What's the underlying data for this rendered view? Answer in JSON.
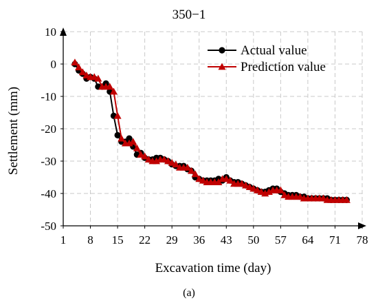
{
  "chart_data": {
    "type": "line",
    "title": "350−1",
    "xlabel": "Excavation time (day)",
    "ylabel": "Settlement (mm)",
    "caption": "(a)",
    "xlim": [
      1,
      78
    ],
    "ylim": [
      -50,
      10
    ],
    "x_ticks": [
      1,
      8,
      15,
      22,
      29,
      36,
      43,
      50,
      57,
      64,
      71,
      78
    ],
    "y_ticks": [
      10,
      0,
      -10,
      -20,
      -30,
      -40,
      -50
    ],
    "grid": true,
    "legend_position": "top-right",
    "series": [
      {
        "name": "Actual value",
        "color": "#000000",
        "marker": "circle",
        "x": [
          4,
          5,
          6,
          7,
          8,
          9,
          10,
          11,
          12,
          13,
          14,
          15,
          16,
          17,
          18,
          19,
          20,
          21,
          22,
          23,
          24,
          25,
          26,
          27,
          28,
          29,
          30,
          31,
          32,
          33,
          34,
          35,
          36,
          37,
          38,
          39,
          40,
          41,
          42,
          43,
          44,
          45,
          46,
          47,
          48,
          49,
          50,
          51,
          52,
          53,
          54,
          55,
          56,
          57,
          58,
          59,
          60,
          61,
          62,
          63,
          64,
          65,
          66,
          67,
          68,
          69,
          70,
          71,
          72,
          73,
          74
        ],
        "y": [
          0,
          -2,
          -3,
          -4.5,
          -4,
          -4.5,
          -7,
          -7,
          -6,
          -8.5,
          -16,
          -22,
          -24,
          -24,
          -23,
          -25.5,
          -28,
          -27.5,
          -29,
          -29.5,
          -29.5,
          -29,
          -29,
          -29.5,
          -30,
          -31,
          -31.5,
          -31.5,
          -31.5,
          -32.5,
          -33,
          -35,
          -35.5,
          -36,
          -36,
          -36,
          -36,
          -35.5,
          -36,
          -35,
          -36,
          -36.5,
          -36.5,
          -37,
          -37.5,
          -38,
          -38.5,
          -39,
          -39.5,
          -39.5,
          -39,
          -38.5,
          -38.5,
          -39.5,
          -40,
          -40.5,
          -40.5,
          -40.5,
          -41,
          -41,
          -41.5,
          -41.5,
          -41.5,
          -41.5,
          -41.5,
          -41.5,
          -42,
          -42,
          -42,
          -42,
          -42
        ]
      },
      {
        "name": "Prediction value",
        "color": "#c00000",
        "marker": "triangle",
        "x": [
          4,
          5,
          6,
          7,
          8,
          9,
          10,
          11,
          12,
          13,
          14,
          15,
          16,
          17,
          18,
          19,
          20,
          21,
          22,
          23,
          24,
          25,
          26,
          27,
          28,
          29,
          30,
          31,
          32,
          33,
          34,
          35,
          36,
          37,
          38,
          39,
          40,
          41,
          42,
          43,
          44,
          45,
          46,
          47,
          48,
          49,
          50,
          51,
          52,
          53,
          54,
          55,
          56,
          57,
          58,
          59,
          60,
          61,
          62,
          63,
          64,
          65,
          66,
          67,
          68,
          69,
          70,
          71,
          72,
          73,
          74
        ],
        "y": [
          0.5,
          -1,
          -2.5,
          -3.5,
          -4,
          -4,
          -4.5,
          -7,
          -7,
          -7,
          -8.5,
          -16,
          -23,
          -24.5,
          -24.5,
          -24,
          -26,
          -28,
          -28.5,
          -29.5,
          -30,
          -30,
          -29.5,
          -29.5,
          -30,
          -30.5,
          -31,
          -32,
          -32,
          -32,
          -33,
          -34,
          -35.5,
          -36,
          -36.5,
          -36.5,
          -36.5,
          -36.5,
          -35.5,
          -35.5,
          -36,
          -37,
          -37,
          -37,
          -37.5,
          -38,
          -38.5,
          -39,
          -39.5,
          -40,
          -39.5,
          -39,
          -39,
          -39,
          -40.5,
          -41,
          -41,
          -41,
          -41,
          -41.5,
          -41.5,
          -41.5,
          -41.5,
          -41.5,
          -41.5,
          -42,
          -42,
          -42,
          -42,
          -42,
          -42
        ]
      }
    ]
  }
}
